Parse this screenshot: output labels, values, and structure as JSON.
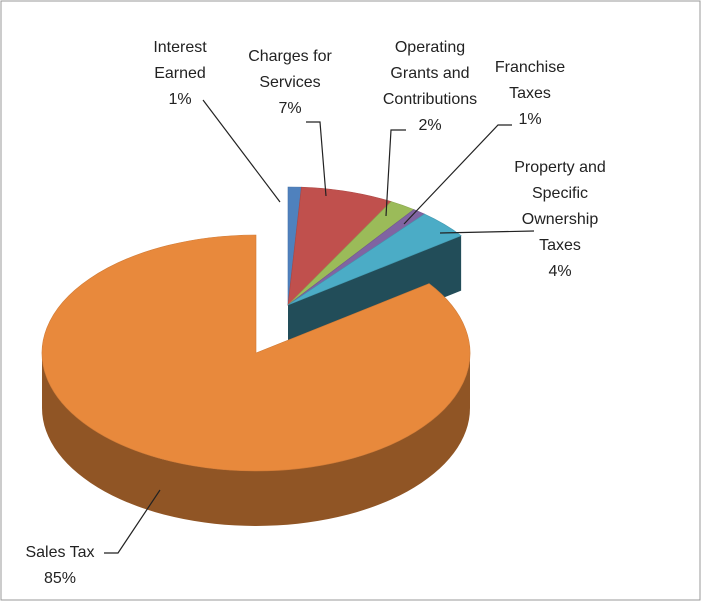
{
  "chart_data": {
    "type": "pie3d",
    "categories": [
      "Interest Earned",
      "Charges for Services",
      "Operating Grants and Contributions",
      "Franchise Taxes",
      "Property and Specific Ownership Taxes",
      "Sales Tax"
    ],
    "values": [
      1,
      7,
      2,
      1,
      4,
      85
    ],
    "value_labels": [
      "1%",
      "7%",
      "2%",
      "1%",
      "4%",
      "85%"
    ],
    "colors": [
      "#4f81bd",
      "#c0504d",
      "#9bbb59",
      "#8064a2",
      "#4bacc6",
      "#e8893c"
    ]
  }
}
